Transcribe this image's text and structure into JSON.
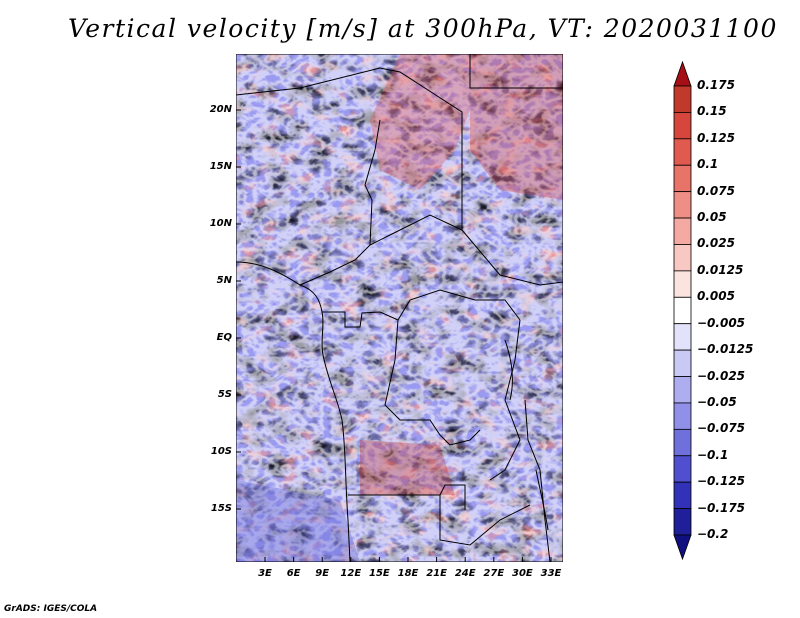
{
  "title": "Vertical velocity [m/s] at 300hPa, VT: 2020031100",
  "footer": "GrADS: IGES/COLA",
  "map": {
    "lat_ticks": [
      "20N",
      "15N",
      "10N",
      "5N",
      "EQ",
      "5S",
      "10S",
      "15S"
    ],
    "lon_ticks": [
      "3E",
      "6E",
      "9E",
      "12E",
      "15E",
      "18E",
      "21E",
      "24E",
      "27E",
      "30E",
      "33E"
    ]
  },
  "colorbar": {
    "labels": [
      "0.175",
      "0.15",
      "0.125",
      "0.1",
      "0.075",
      "0.05",
      "0.025",
      "0.0125",
      "0.005",
      "−0.005",
      "−0.0125",
      "−0.025",
      "−0.05",
      "−0.075",
      "−0.1",
      "−0.125",
      "−0.175",
      "−0.2"
    ],
    "colors": [
      "#a50f15",
      "#c0392b",
      "#d6463c",
      "#e05a4f",
      "#e87368",
      "#ef8e84",
      "#f4aaa2",
      "#f8c8c2",
      "#fbe3e0",
      "#ffffff",
      "#e2e2fb",
      "#c9c9f6",
      "#adadf0",
      "#9090e8",
      "#7070dd",
      "#4f4fcf",
      "#3232b8",
      "#1f1f9a",
      "#0f0f80"
    ]
  }
}
